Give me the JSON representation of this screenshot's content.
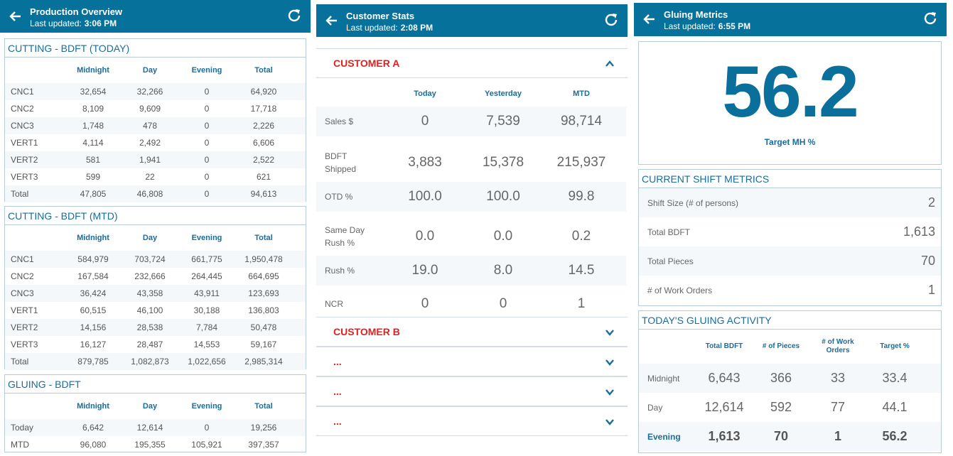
{
  "production": {
    "title": "Production Overview",
    "updated_label": "Last updated:",
    "updated_time": "3:06 PM",
    "cutting_today": {
      "title": "CUTTING - BDFT (TODAY)",
      "cols": [
        "Midnight",
        "Day",
        "Evening",
        "Total"
      ],
      "rows": [
        {
          "label": "CNC1",
          "v": [
            "32,654",
            "32,266",
            "0",
            "64,920"
          ]
        },
        {
          "label": "CNC2",
          "v": [
            "8,109",
            "9,609",
            "0",
            "17,718"
          ]
        },
        {
          "label": "CNC3",
          "v": [
            "1,748",
            "478",
            "0",
            "2,226"
          ]
        },
        {
          "label": "VERT1",
          "v": [
            "4,114",
            "2,492",
            "0",
            "6,606"
          ]
        },
        {
          "label": "VERT2",
          "v": [
            "581",
            "1,941",
            "0",
            "2,522"
          ]
        },
        {
          "label": "VERT3",
          "v": [
            "599",
            "22",
            "0",
            "621"
          ]
        },
        {
          "label": "Total",
          "v": [
            "47,805",
            "46,808",
            "0",
            "94,613"
          ]
        }
      ]
    },
    "cutting_mtd": {
      "title": "CUTTING - BDFT (MTD)",
      "cols": [
        "Midnight",
        "Day",
        "Evening",
        "Total"
      ],
      "rows": [
        {
          "label": "CNC1",
          "v": [
            "584,979",
            "703,724",
            "661,775",
            "1,950,478"
          ]
        },
        {
          "label": "CNC2",
          "v": [
            "167,584",
            "232,666",
            "264,445",
            "664,695"
          ]
        },
        {
          "label": "CNC3",
          "v": [
            "36,424",
            "43,358",
            "43,911",
            "123,693"
          ]
        },
        {
          "label": "VERT1",
          "v": [
            "60,515",
            "46,100",
            "30,188",
            "136,803"
          ]
        },
        {
          "label": "VERT2",
          "v": [
            "14,156",
            "28,538",
            "7,784",
            "50,478"
          ]
        },
        {
          "label": "VERT3",
          "v": [
            "16,127",
            "28,487",
            "14,553",
            "59,167"
          ]
        },
        {
          "label": "Total",
          "v": [
            "879,785",
            "1,082,873",
            "1,022,656",
            "2,985,314"
          ]
        }
      ]
    },
    "gluing": {
      "title": "GLUING - BDFT",
      "cols": [
        "Midnight",
        "Day",
        "Evening",
        "Total"
      ],
      "rows": [
        {
          "label": "Today",
          "v": [
            "6,642",
            "12,614",
            "0",
            "19,256"
          ]
        },
        {
          "label": "MTD",
          "v": [
            "96,080",
            "195,355",
            "105,921",
            "397,357"
          ]
        }
      ]
    }
  },
  "customer": {
    "title": "Customer Stats",
    "updated_label": "Last updated:",
    "updated_time": "2:08 PM",
    "a_name": "CUSTOMER A",
    "b_name": "CUSTOMER B",
    "placeholder": "...",
    "cols": [
      "Today",
      "Yesterday",
      "MTD"
    ],
    "rows": [
      {
        "l1": "Sales $",
        "l2": "",
        "v": [
          "0",
          "7,539",
          "98,714"
        ]
      },
      {
        "l1": "BDFT",
        "l2": "Shipped",
        "v": [
          "3,883",
          "15,378",
          "215,937"
        ]
      },
      {
        "l1": "OTD %",
        "l2": "",
        "v": [
          "100.0",
          "100.0",
          "99.8"
        ]
      },
      {
        "l1": "Same Day",
        "l2": "Rush %",
        "v": [
          "0.0",
          "0.0",
          "0.2"
        ]
      },
      {
        "l1": "Rush %",
        "l2": "",
        "v": [
          "19.0",
          "8.0",
          "14.5"
        ]
      },
      {
        "l1": "NCR",
        "l2": "",
        "v": [
          "0",
          "0",
          "1"
        ]
      }
    ]
  },
  "gluing_metrics": {
    "title": "Gluing Metrics",
    "updated_label": "Last updated:",
    "updated_time": "6:55 PM",
    "big_value": "56.2",
    "big_label": "Target MH %",
    "shift": {
      "title": "CURRENT SHIFT METRICS",
      "rows": [
        {
          "label": "Shift Size (# of persons)",
          "v": "2"
        },
        {
          "label": "Total BDFT",
          "v": "1,613"
        },
        {
          "label": "Total Pieces",
          "v": "70"
        },
        {
          "label": "# of Work Orders",
          "v": "1"
        }
      ]
    },
    "activity": {
      "title": "TODAY'S GLUING ACTIVITY",
      "cols": [
        "Total BDFT",
        "# of Pieces",
        "# of Work Orders",
        "Target %"
      ],
      "rows": [
        {
          "label": "Midnight",
          "v": [
            "6,643",
            "366",
            "33",
            "33.4"
          ]
        },
        {
          "label": "Day",
          "v": [
            "12,614",
            "592",
            "77",
            "44.1"
          ]
        },
        {
          "label": "Evening",
          "v": [
            "1,613",
            "70",
            "1",
            "56.2"
          ]
        }
      ]
    }
  },
  "colors": {
    "appbar": "#06729b",
    "accent_text": "#1a6c9a",
    "customer_red": "#e02020"
  },
  "icons": [
    "back-arrow-icon",
    "refresh-icon",
    "chevron-up-icon",
    "chevron-down-icon"
  ]
}
